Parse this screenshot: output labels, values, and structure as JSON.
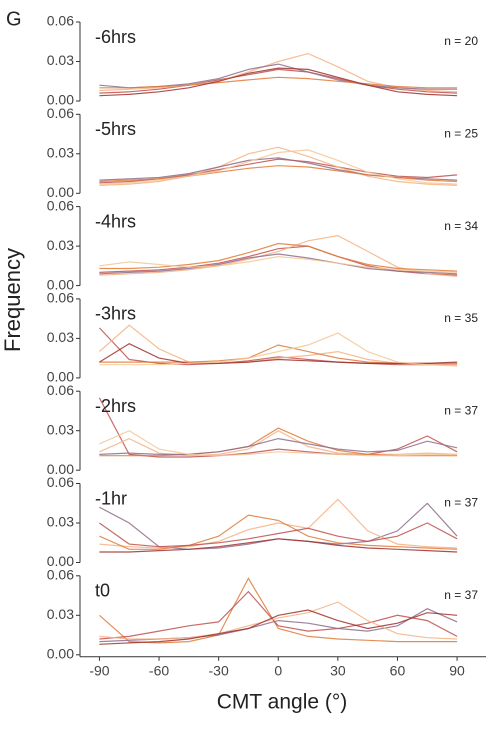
{
  "panel_label": "G",
  "ylabel": "Frequency",
  "xlabel": "CMT angle (°)",
  "chart_data": [
    {
      "type": "line",
      "title": "-6hrs",
      "annotation": "n = 20",
      "xlim": [
        -95,
        95
      ],
      "ylim": [
        0,
        0.06
      ],
      "yticks": [
        {
          "value": 0,
          "label": "0.00"
        },
        {
          "value": 0.03,
          "label": "0.03"
        },
        {
          "value": 0.06,
          "label": "0.06"
        }
      ],
      "x": [
        -90,
        -75,
        -60,
        -45,
        -30,
        -15,
        0,
        15,
        30,
        45,
        60,
        75,
        90
      ],
      "series": [
        {
          "color": "#c0504d",
          "values": [
            0.006,
            0.007,
            0.009,
            0.012,
            0.016,
            0.02,
            0.024,
            0.022,
            0.017,
            0.012,
            0.009,
            0.007,
            0.006
          ]
        },
        {
          "color": "#f4b183",
          "values": [
            0.008,
            0.009,
            0.01,
            0.012,
            0.015,
            0.022,
            0.03,
            0.036,
            0.026,
            0.015,
            0.01,
            0.008,
            0.007
          ]
        },
        {
          "color": "#8e6c8a",
          "values": [
            0.012,
            0.01,
            0.011,
            0.013,
            0.017,
            0.024,
            0.028,
            0.022,
            0.016,
            0.012,
            0.01,
            0.009,
            0.009
          ]
        },
        {
          "color": "#e07b39",
          "values": [
            0.01,
            0.01,
            0.011,
            0.012,
            0.014,
            0.016,
            0.018,
            0.017,
            0.015,
            0.013,
            0.011,
            0.01,
            0.01
          ]
        },
        {
          "color": "#a0302d",
          "values": [
            0.004,
            0.005,
            0.007,
            0.01,
            0.015,
            0.021,
            0.025,
            0.024,
            0.018,
            0.012,
            0.007,
            0.005,
            0.004
          ]
        }
      ]
    },
    {
      "type": "line",
      "title": "-5hrs",
      "annotation": "n = 25",
      "xlim": [
        -95,
        95
      ],
      "ylim": [
        0,
        0.06
      ],
      "yticks": [
        {
          "value": 0,
          "label": "0.00"
        },
        {
          "value": 0.03,
          "label": "0.03"
        },
        {
          "value": 0.06,
          "label": "0.06"
        }
      ],
      "x": [
        -90,
        -75,
        -60,
        -45,
        -30,
        -15,
        0,
        15,
        30,
        45,
        60,
        75,
        90
      ],
      "series": [
        {
          "color": "#c0504d",
          "values": [
            0.008,
            0.009,
            0.011,
            0.014,
            0.018,
            0.022,
            0.026,
            0.024,
            0.02,
            0.016,
            0.013,
            0.012,
            0.014
          ]
        },
        {
          "color": "#f4b183",
          "values": [
            0.006,
            0.007,
            0.009,
            0.013,
            0.02,
            0.03,
            0.035,
            0.028,
            0.02,
            0.013,
            0.009,
            0.007,
            0.006
          ]
        },
        {
          "color": "#8e6c8a",
          "values": [
            0.01,
            0.011,
            0.012,
            0.015,
            0.02,
            0.025,
            0.027,
            0.023,
            0.018,
            0.014,
            0.012,
            0.011,
            0.01
          ]
        },
        {
          "color": "#e07b39",
          "values": [
            0.009,
            0.01,
            0.011,
            0.013,
            0.016,
            0.019,
            0.021,
            0.02,
            0.017,
            0.014,
            0.012,
            0.01,
            0.009
          ]
        },
        {
          "color": "#f2c894",
          "values": [
            0.007,
            0.008,
            0.01,
            0.013,
            0.017,
            0.024,
            0.031,
            0.033,
            0.025,
            0.016,
            0.011,
            0.008,
            0.007
          ]
        }
      ]
    },
    {
      "type": "line",
      "title": "-4hrs",
      "annotation": "n = 34",
      "xlim": [
        -95,
        95
      ],
      "ylim": [
        0,
        0.06
      ],
      "yticks": [
        {
          "value": 0,
          "label": "0.00"
        },
        {
          "value": 0.03,
          "label": "0.03"
        },
        {
          "value": 0.06,
          "label": "0.06"
        }
      ],
      "x": [
        -90,
        -75,
        -60,
        -45,
        -30,
        -15,
        0,
        15,
        30,
        45,
        60,
        75,
        90
      ],
      "series": [
        {
          "color": "#c0504d",
          "values": [
            0.01,
            0.011,
            0.012,
            0.014,
            0.017,
            0.022,
            0.028,
            0.03,
            0.022,
            0.015,
            0.011,
            0.009,
            0.008
          ]
        },
        {
          "color": "#f4b183",
          "values": [
            0.008,
            0.009,
            0.01,
            0.012,
            0.015,
            0.02,
            0.026,
            0.034,
            0.038,
            0.026,
            0.014,
            0.009,
            0.007
          ]
        },
        {
          "color": "#e07b39",
          "values": [
            0.013,
            0.013,
            0.014,
            0.016,
            0.019,
            0.025,
            0.032,
            0.03,
            0.022,
            0.016,
            0.013,
            0.012,
            0.011
          ]
        },
        {
          "color": "#8e6c8a",
          "values": [
            0.009,
            0.01,
            0.011,
            0.013,
            0.016,
            0.021,
            0.024,
            0.021,
            0.017,
            0.013,
            0.011,
            0.01,
            0.009
          ]
        },
        {
          "color": "#f2c894",
          "values": [
            0.015,
            0.018,
            0.016,
            0.014,
            0.015,
            0.018,
            0.022,
            0.02,
            0.017,
            0.014,
            0.012,
            0.011,
            0.01
          ]
        }
      ]
    },
    {
      "type": "line",
      "title": "-3hrs",
      "annotation": "n = 35",
      "xlim": [
        -95,
        95
      ],
      "ylim": [
        0,
        0.06
      ],
      "yticks": [
        {
          "value": 0,
          "label": "0.00"
        },
        {
          "value": 0.03,
          "label": "0.03"
        },
        {
          "value": 0.06,
          "label": "0.06"
        }
      ],
      "x": [
        -90,
        -75,
        -60,
        -45,
        -30,
        -15,
        0,
        15,
        30,
        45,
        60,
        75,
        90
      ],
      "series": [
        {
          "color": "#c0504d",
          "values": [
            0.038,
            0.014,
            0.011,
            0.01,
            0.011,
            0.013,
            0.016,
            0.014,
            0.012,
            0.011,
            0.01,
            0.01,
            0.01
          ]
        },
        {
          "color": "#f4b183",
          "values": [
            0.02,
            0.04,
            0.022,
            0.012,
            0.011,
            0.012,
            0.015,
            0.017,
            0.02,
            0.014,
            0.011,
            0.01,
            0.01
          ]
        },
        {
          "color": "#e07b39",
          "values": [
            0.012,
            0.012,
            0.012,
            0.012,
            0.013,
            0.015,
            0.025,
            0.02,
            0.015,
            0.012,
            0.011,
            0.011,
            0.011
          ]
        },
        {
          "color": "#a0302d",
          "values": [
            0.012,
            0.026,
            0.015,
            0.011,
            0.011,
            0.012,
            0.014,
            0.013,
            0.012,
            0.011,
            0.011,
            0.011,
            0.012
          ]
        },
        {
          "color": "#f2c894",
          "values": [
            0.01,
            0.01,
            0.01,
            0.011,
            0.012,
            0.015,
            0.02,
            0.025,
            0.034,
            0.02,
            0.012,
            0.01,
            0.009
          ]
        }
      ]
    },
    {
      "type": "line",
      "title": "-2hrs",
      "annotation": "n = 37",
      "xlim": [
        -95,
        95
      ],
      "ylim": [
        0,
        0.06
      ],
      "yticks": [
        {
          "value": 0,
          "label": "0.00"
        },
        {
          "value": 0.03,
          "label": "0.03"
        },
        {
          "value": 0.06,
          "label": "0.06"
        }
      ],
      "x": [
        -90,
        -75,
        -60,
        -45,
        -30,
        -15,
        0,
        15,
        30,
        45,
        60,
        75,
        90
      ],
      "series": [
        {
          "color": "#c0504d",
          "values": [
            0.055,
            0.012,
            0.01,
            0.01,
            0.011,
            0.013,
            0.016,
            0.014,
            0.012,
            0.012,
            0.016,
            0.026,
            0.014
          ]
        },
        {
          "color": "#f4b183",
          "values": [
            0.014,
            0.024,
            0.013,
            0.011,
            0.012,
            0.016,
            0.03,
            0.018,
            0.013,
            0.012,
            0.012,
            0.013,
            0.012
          ]
        },
        {
          "color": "#e07b39",
          "values": [
            0.011,
            0.011,
            0.011,
            0.012,
            0.014,
            0.018,
            0.032,
            0.022,
            0.015,
            0.012,
            0.011,
            0.011,
            0.011
          ]
        },
        {
          "color": "#8e6c8a",
          "values": [
            0.012,
            0.013,
            0.012,
            0.012,
            0.014,
            0.018,
            0.024,
            0.02,
            0.016,
            0.014,
            0.015,
            0.022,
            0.017
          ]
        },
        {
          "color": "#f2c894",
          "values": [
            0.02,
            0.03,
            0.016,
            0.012,
            0.011,
            0.012,
            0.014,
            0.013,
            0.012,
            0.011,
            0.011,
            0.012,
            0.012
          ]
        }
      ]
    },
    {
      "type": "line",
      "title": "-1hr",
      "annotation": "n = 37",
      "xlim": [
        -95,
        95
      ],
      "ylim": [
        0,
        0.06
      ],
      "yticks": [
        {
          "value": 0,
          "label": "0.00"
        },
        {
          "value": 0.03,
          "label": "0.03"
        },
        {
          "value": 0.06,
          "label": "0.06"
        }
      ],
      "x": [
        -90,
        -75,
        -60,
        -45,
        -30,
        -15,
        0,
        15,
        30,
        45,
        60,
        75,
        90
      ],
      "series": [
        {
          "color": "#8e6c8a",
          "values": [
            0.042,
            0.03,
            0.012,
            0.01,
            0.011,
            0.014,
            0.018,
            0.016,
            0.014,
            0.016,
            0.024,
            0.045,
            0.02
          ]
        },
        {
          "color": "#f4b183",
          "values": [
            0.014,
            0.012,
            0.011,
            0.012,
            0.016,
            0.025,
            0.03,
            0.026,
            0.048,
            0.024,
            0.014,
            0.012,
            0.011
          ]
        },
        {
          "color": "#e07b39",
          "values": [
            0.02,
            0.01,
            0.01,
            0.013,
            0.02,
            0.036,
            0.032,
            0.02,
            0.015,
            0.013,
            0.012,
            0.011,
            0.01
          ]
        },
        {
          "color": "#c0504d",
          "values": [
            0.03,
            0.014,
            0.012,
            0.013,
            0.015,
            0.018,
            0.022,
            0.026,
            0.02,
            0.016,
            0.02,
            0.03,
            0.018
          ]
        },
        {
          "color": "#a0302d",
          "values": [
            0.008,
            0.008,
            0.009,
            0.01,
            0.012,
            0.015,
            0.018,
            0.016,
            0.013,
            0.011,
            0.01,
            0.009,
            0.008
          ]
        }
      ]
    },
    {
      "type": "line",
      "title": "t0",
      "annotation": "n = 37",
      "xlim": [
        -95,
        95
      ],
      "ylim": [
        0,
        0.06
      ],
      "yticks": [
        {
          "value": 0,
          "label": "0.00"
        },
        {
          "value": 0.03,
          "label": "0.03"
        },
        {
          "value": 0.06,
          "label": "0.06"
        }
      ],
      "xticks": [
        -90,
        -60,
        -30,
        0,
        30,
        60,
        90
      ],
      "x": [
        -90,
        -75,
        -60,
        -45,
        -30,
        -15,
        0,
        15,
        30,
        45,
        60,
        75,
        90
      ],
      "series": [
        {
          "color": "#e07b39",
          "values": [
            0.03,
            0.01,
            0.009,
            0.01,
            0.015,
            0.058,
            0.02,
            0.014,
            0.012,
            0.011,
            0.01,
            0.01,
            0.01
          ]
        },
        {
          "color": "#c0504d",
          "values": [
            0.012,
            0.014,
            0.018,
            0.022,
            0.025,
            0.048,
            0.022,
            0.018,
            0.02,
            0.024,
            0.03,
            0.026,
            0.014
          ]
        },
        {
          "color": "#8e6c8a",
          "values": [
            0.01,
            0.011,
            0.012,
            0.013,
            0.015,
            0.02,
            0.026,
            0.024,
            0.02,
            0.018,
            0.022,
            0.035,
            0.025
          ]
        },
        {
          "color": "#f4b183",
          "values": [
            0.014,
            0.012,
            0.012,
            0.013,
            0.016,
            0.022,
            0.028,
            0.032,
            0.04,
            0.026,
            0.016,
            0.013,
            0.012
          ]
        },
        {
          "color": "#a0302d",
          "values": [
            0.008,
            0.009,
            0.01,
            0.012,
            0.016,
            0.02,
            0.03,
            0.034,
            0.026,
            0.02,
            0.024,
            0.032,
            0.03
          ]
        }
      ]
    }
  ]
}
